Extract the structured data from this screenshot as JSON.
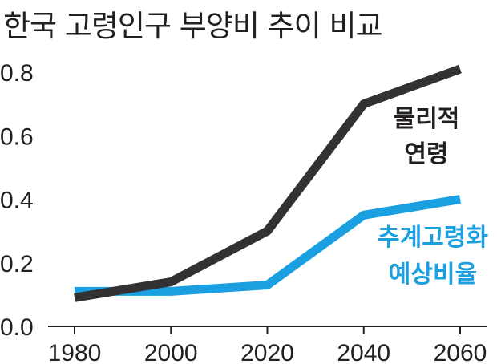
{
  "title": "한국 고령인구 부양비 추이 비교",
  "chart_data": {
    "type": "line",
    "title": "한국 고령인구 부양비 추이 비교",
    "xlabel": "",
    "ylabel": "",
    "x": [
      1980,
      2000,
      2020,
      2040,
      2060
    ],
    "ylim": [
      0.0,
      0.8
    ],
    "yticks": [
      "0.0",
      "0.2",
      "0.4",
      "0.6",
      "0.8"
    ],
    "xticks": [
      "1980",
      "2000",
      "2020",
      "2040",
      "2060"
    ],
    "grid": false,
    "series": [
      {
        "name_lines": [
          "물리적",
          "연령"
        ],
        "color": "#333133",
        "values": [
          0.09,
          0.14,
          0.3,
          0.7,
          0.81
        ]
      },
      {
        "name_lines": [
          "추계고령화",
          "예상비율"
        ],
        "color": "#1aa0e0",
        "values": [
          0.11,
          0.11,
          0.13,
          0.35,
          0.4
        ]
      }
    ]
  }
}
